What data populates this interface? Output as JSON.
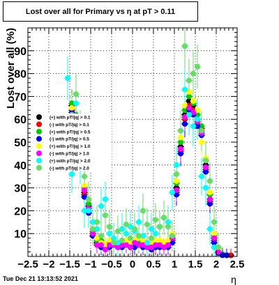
{
  "chart_data": {
    "type": "scatter",
    "title": "Lost over all for Primary vs   η at pT > 0.11",
    "xlabel": "η",
    "ylabel": "Lost over all (%)",
    "xlim": [
      -2.5,
      2.5
    ],
    "ylim": [
      0,
      100
    ],
    "x_ticks": [
      "−2.5",
      "−2",
      "−1.5",
      "−1",
      "−0.5",
      "0",
      "0.5",
      "1",
      "1.5",
      "2",
      "2.5"
    ],
    "y_ticks": [
      "10",
      "20",
      "30",
      "40",
      "50",
      "60",
      "70",
      "80",
      "90"
    ],
    "grid": true,
    "legend_position": "left-middle",
    "series": [
      {
        "name": "(+) with pT/|q| > 0.1",
        "color": "#000000",
        "x": [
          -1.45,
          -1.35,
          -1.25,
          -1.15,
          -1.05,
          -0.95,
          -0.85,
          -0.75,
          -0.65,
          -0.55,
          -0.45,
          -0.35,
          -0.25,
          -0.15,
          -0.05,
          0.05,
          0.15,
          0.25,
          0.35,
          0.45,
          0.55,
          0.65,
          0.75,
          0.85,
          0.95,
          1.05,
          1.15,
          1.25,
          1.35,
          1.45,
          1.55,
          1.65,
          1.75,
          1.85,
          1.95,
          2.05,
          2.15,
          2.25,
          2.35
        ],
        "y": [
          66,
          60,
          48,
          28,
          22,
          10,
          6,
          6,
          4,
          5,
          6,
          5,
          5,
          6,
          5,
          6,
          6,
          5,
          5,
          4,
          6,
          5,
          5,
          5,
          8,
          30,
          48,
          62,
          68,
          66,
          60,
          55,
          40,
          25,
          8,
          2,
          1,
          0.5,
          0.5
        ]
      },
      {
        "name": "(-) with pT/|q| > 0.1",
        "color": "#ff0000",
        "x": [
          -1.45,
          -1.35,
          -1.25,
          -1.15,
          -1.05,
          -0.95,
          -0.85,
          -0.75,
          -0.65,
          -0.55,
          -0.45,
          -0.35,
          -0.25,
          -0.15,
          -0.05,
          0.05,
          0.15,
          0.25,
          0.35,
          0.45,
          0.55,
          0.65,
          0.75,
          0.85,
          0.95,
          1.05,
          1.15,
          1.25,
          1.35,
          1.45,
          1.55,
          1.65,
          1.75,
          1.85,
          1.95,
          2.05,
          2.15,
          2.25,
          2.35
        ],
        "y": [
          64,
          58,
          46,
          27,
          20,
          9,
          5,
          5,
          4,
          5,
          5,
          4,
          5,
          5,
          4,
          5,
          5,
          4,
          5,
          4,
          5,
          5,
          4,
          5,
          7,
          28,
          46,
          60,
          66,
          64,
          58,
          56,
          38,
          24,
          7,
          2,
          1,
          0.5,
          0.5
        ]
      },
      {
        "name": "(+) with pT/|q| > 0.5",
        "color": "#00cc00",
        "x": [
          -1.45,
          -1.35,
          -1.25,
          -1.15,
          -1.05,
          -0.95,
          -0.85,
          -0.75,
          -0.65,
          -0.55,
          -0.45,
          -0.35,
          -0.25,
          -0.15,
          -0.05,
          0.05,
          0.15,
          0.25,
          0.35,
          0.45,
          0.55,
          0.65,
          0.75,
          0.85,
          0.95,
          1.05,
          1.15,
          1.25,
          1.35,
          1.45,
          1.55,
          1.65,
          1.75,
          1.85,
          1.95,
          2.05,
          2.15,
          2.25
        ],
        "y": [
          67,
          62,
          50,
          30,
          23,
          11,
          7,
          7,
          5,
          6,
          6,
          5,
          6,
          6,
          5,
          6,
          7,
          6,
          5,
          5,
          6,
          6,
          5,
          6,
          9,
          32,
          50,
          64,
          70,
          67,
          62,
          57,
          42,
          27,
          9,
          3,
          1,
          0.5
        ]
      },
      {
        "name": "(-) with pT/|q| > 0.5",
        "color": "#0000ff",
        "x": [
          -1.45,
          -1.35,
          -1.25,
          -1.15,
          -1.05,
          -0.95,
          -0.85,
          -0.75,
          -0.65,
          -0.55,
          -0.45,
          -0.35,
          -0.25,
          -0.15,
          -0.05,
          0.05,
          0.15,
          0.25,
          0.35,
          0.45,
          0.55,
          0.65,
          0.75,
          0.85,
          0.95,
          1.05,
          1.15,
          1.25,
          1.35,
          1.45,
          1.55,
          1.65,
          1.75,
          1.85,
          1.95,
          2.05,
          2.15,
          2.25
        ],
        "y": [
          63,
          57,
          45,
          26,
          19,
          9,
          5,
          4,
          3,
          4,
          5,
          4,
          4,
          5,
          4,
          4,
          5,
          4,
          4,
          3,
          4,
          4,
          4,
          4,
          6,
          27,
          45,
          58,
          64,
          62,
          57,
          53,
          37,
          23,
          6,
          1.5,
          0.5,
          0.5
        ]
      },
      {
        "name": "(+) with pT/|q| > 1.0",
        "color": "#ffff00",
        "x": [
          -1.45,
          -1.35,
          -1.25,
          -1.15,
          -1.05,
          -0.95,
          -0.85,
          -0.75,
          -0.65,
          -0.55,
          -0.45,
          -0.35,
          -0.25,
          -0.15,
          -0.05,
          0.05,
          0.15,
          0.25,
          0.35,
          0.45,
          0.55,
          0.65,
          0.75,
          0.85,
          0.95,
          1.05,
          1.15,
          1.25,
          1.35,
          1.45,
          1.55,
          1.65,
          1.75,
          1.85,
          1.95,
          2.05
        ],
        "y": [
          65,
          61,
          52,
          31,
          25,
          12,
          8,
          6,
          5,
          7,
          7,
          6,
          6,
          7,
          6,
          7,
          8,
          7,
          6,
          6,
          7,
          7,
          6,
          7,
          10,
          33,
          52,
          66,
          72,
          68,
          64,
          50,
          43,
          28,
          10,
          3
        ]
      },
      {
        "name": "(-) with pT/|q| > 1.0",
        "color": "#ff00ff",
        "x": [
          -1.45,
          -1.35,
          -1.25,
          -1.15,
          -1.05,
          -0.95,
          -0.85,
          -0.75,
          -0.65,
          -0.55,
          -0.45,
          -0.35,
          -0.25,
          -0.15,
          -0.05,
          0.05,
          0.15,
          0.25,
          0.35,
          0.45,
          0.55,
          0.65,
          0.75,
          0.85,
          0.95,
          1.05,
          1.15,
          1.25,
          1.35,
          1.45,
          1.55,
          1.65,
          1.75,
          1.85,
          1.95,
          2.05
        ],
        "y": [
          62,
          59,
          47,
          29,
          21,
          10,
          5,
          5,
          3,
          5,
          5,
          4,
          5,
          5,
          4,
          6,
          5,
          5,
          4,
          4,
          5,
          5,
          4,
          5,
          8,
          29,
          47,
          61,
          65,
          63,
          59,
          54,
          39,
          25,
          8,
          2
        ]
      },
      {
        "name": "(+) with pT/|q| > 2.0",
        "color": "#00ffff",
        "x": [
          -1.55,
          -1.45,
          -1.35,
          -1.25,
          -1.15,
          -1.05,
          -0.95,
          -0.85,
          -0.75,
          -0.65,
          -0.55,
          -0.45,
          -0.35,
          -0.25,
          -0.15,
          -0.05,
          0.05,
          0.15,
          0.25,
          0.35,
          0.45,
          0.55,
          0.65,
          0.75,
          0.85,
          0.95,
          1.05,
          1.15,
          1.25,
          1.35,
          1.45,
          1.55,
          1.65,
          1.75,
          1.85,
          1.95
        ],
        "y": [
          78,
          36,
          67,
          40,
          20,
          20,
          15,
          12,
          22,
          25,
          10,
          8,
          6,
          12,
          10,
          13,
          11,
          15,
          9,
          6,
          12,
          10,
          13,
          17,
          15,
          28,
          40,
          55,
          73,
          62,
          57,
          60,
          35,
          30,
          12,
          4
        ]
      },
      {
        "name": "(-) with pT/|q| > 2.0",
        "color": "#66dd66",
        "x": [
          -1.45,
          -1.35,
          -1.25,
          -1.15,
          -1.05,
          -0.95,
          -0.85,
          -0.75,
          -0.65,
          -0.55,
          -0.45,
          -0.35,
          -0.25,
          -0.15,
          -0.05,
          0.05,
          0.15,
          0.25,
          0.35,
          0.45,
          0.55,
          0.65,
          0.75,
          0.85,
          0.95,
          1.05,
          1.15,
          1.25,
          1.35,
          1.45,
          1.55,
          1.65,
          1.75,
          1.85,
          1.95,
          2.05
        ],
        "y": [
          62,
          71,
          55,
          35,
          25,
          12,
          15,
          9,
          18,
          13,
          6,
          11,
          7,
          14,
          8,
          12,
          9,
          20,
          14,
          8,
          16,
          13,
          17,
          13,
          9,
          36,
          55,
          92,
          77,
          80,
          83,
          55,
          42,
          33,
          15,
          4
        ]
      }
    ]
  },
  "timestamp": "Tue Dec 21 13:13:52 2021"
}
